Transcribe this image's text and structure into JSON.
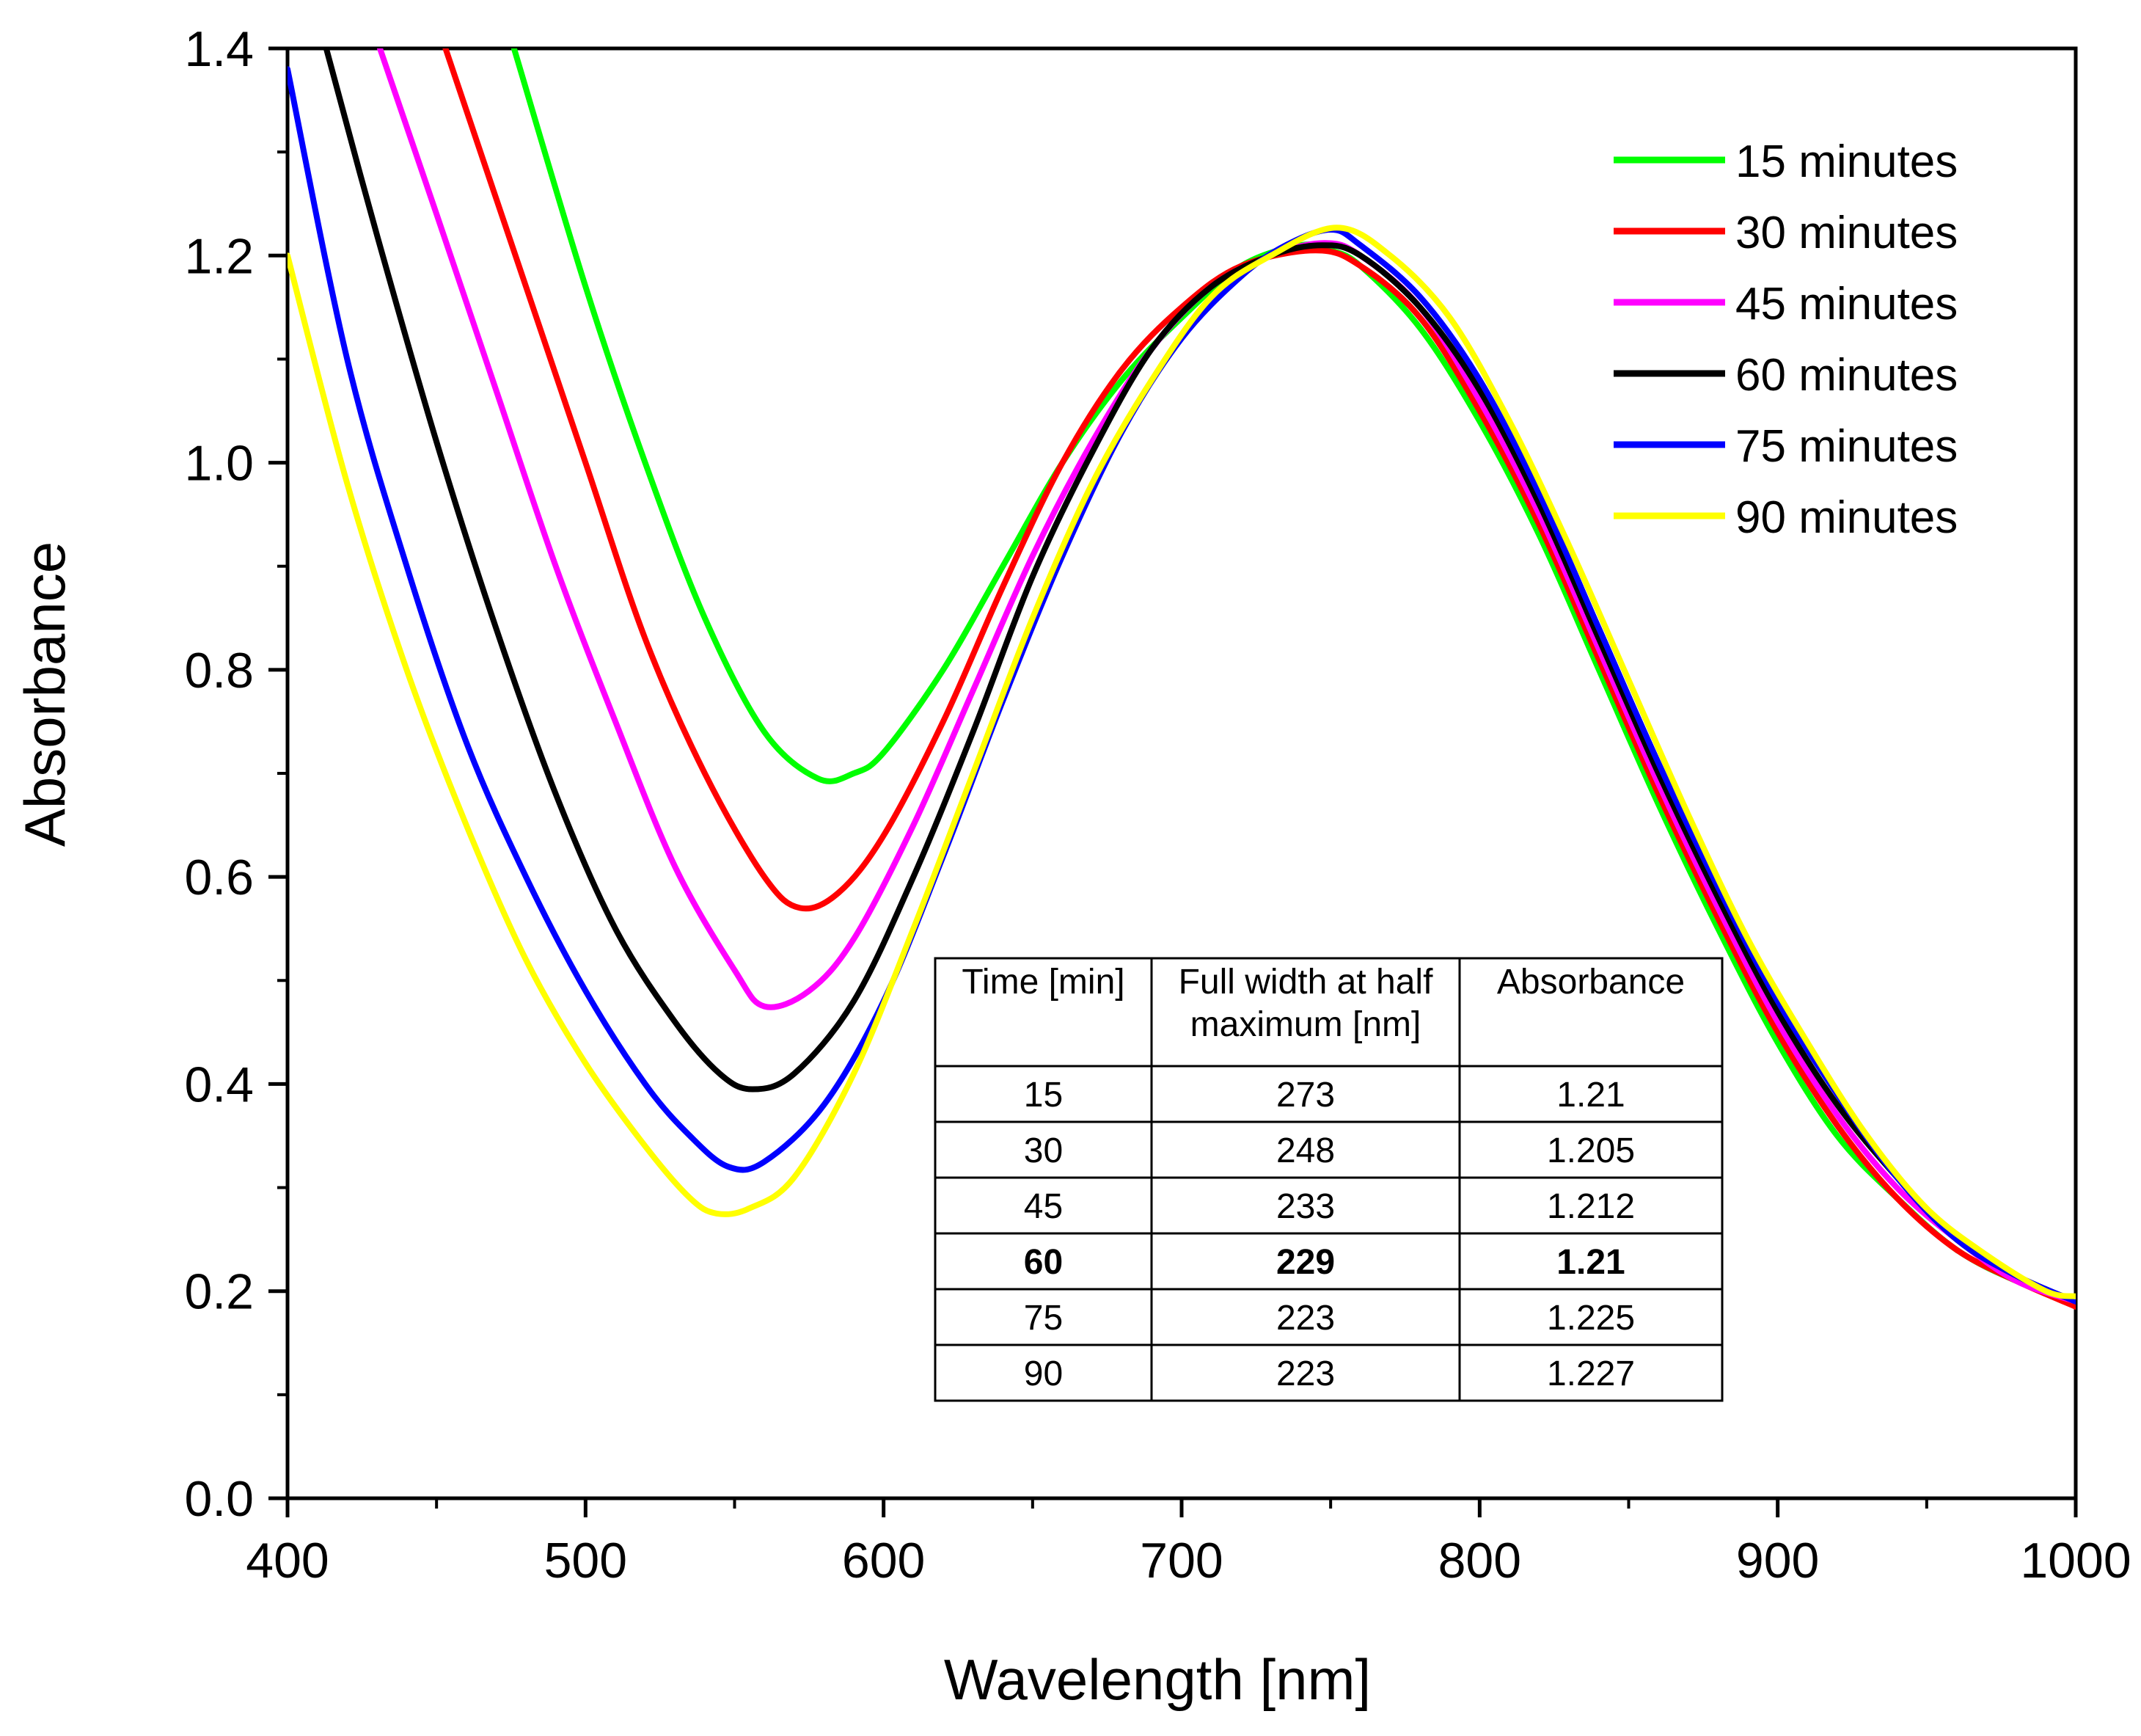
{
  "chart_data": {
    "type": "line",
    "title": "",
    "xlabel": "Wavelength [nm]",
    "ylabel": "Absorbance",
    "xlim": [
      400,
      1000
    ],
    "ylim": [
      0.0,
      1.4
    ],
    "x_ticks": [
      "400",
      "500",
      "600",
      "700",
      "800",
      "900",
      "1000"
    ],
    "y_ticks": [
      "0.0",
      "0.2",
      "0.4",
      "0.6",
      "0.8",
      "1.0",
      "1.2",
      "1.4"
    ],
    "grid": false,
    "legend_position": "top-right",
    "series": [
      {
        "name": "15 minutes",
        "color": "#00ff00",
        "x": [
          476,
          500,
          520,
          540,
          560,
          578,
          590,
          600,
          620,
          640,
          660,
          680,
          700,
          720,
          740,
          750,
          760,
          780,
          800,
          820,
          840,
          860,
          880,
          900,
          920,
          940,
          960,
          980,
          1000
        ],
        "y": [
          1.4,
          1.17,
          1.0,
          0.85,
          0.74,
          0.695,
          0.7,
          0.72,
          0.8,
          0.9,
          1.0,
          1.08,
          1.14,
          1.19,
          1.21,
          1.205,
          1.19,
          1.13,
          1.04,
          0.93,
          0.8,
          0.67,
          0.55,
          0.44,
          0.35,
          0.29,
          0.24,
          0.21,
          0.19
        ]
      },
      {
        "name": "30 minutes",
        "color": "#ff0000",
        "x": [
          453,
          480,
          500,
          520,
          540,
          560,
          572,
          585,
          600,
          620,
          640,
          660,
          680,
          700,
          720,
          745,
          760,
          780,
          800,
          820,
          840,
          860,
          880,
          900,
          920,
          940,
          960,
          980,
          1000
        ],
        "y": [
          1.4,
          1.17,
          1.0,
          0.83,
          0.7,
          0.6,
          0.57,
          0.585,
          0.64,
          0.75,
          0.88,
          1.0,
          1.09,
          1.15,
          1.19,
          1.205,
          1.19,
          1.14,
          1.05,
          0.94,
          0.81,
          0.68,
          0.56,
          0.45,
          0.36,
          0.29,
          0.24,
          0.21,
          0.185
        ]
      },
      {
        "name": "45 minutes",
        "color": "#ff00ff",
        "x": [
          431,
          450,
          470,
          490,
          510,
          530,
          550,
          560,
          575,
          590,
          610,
          630,
          650,
          670,
          690,
          710,
          730,
          748,
          760,
          780,
          800,
          820,
          840,
          860,
          880,
          900,
          920,
          940,
          960,
          980,
          1000
        ],
        "y": [
          1.4,
          1.24,
          1.07,
          0.9,
          0.75,
          0.61,
          0.51,
          0.475,
          0.49,
          0.54,
          0.65,
          0.78,
          0.91,
          1.02,
          1.11,
          1.17,
          1.2,
          1.212,
          1.2,
          1.15,
          1.06,
          0.95,
          0.82,
          0.69,
          0.57,
          0.46,
          0.37,
          0.3,
          0.25,
          0.21,
          0.19
        ]
      },
      {
        "name": "60 minutes",
        "color": "#000000",
        "x": [
          413,
          430,
          450,
          470,
          490,
          510,
          530,
          545,
          556,
          570,
          590,
          610,
          630,
          650,
          670,
          690,
          710,
          730,
          747,
          760,
          780,
          800,
          820,
          840,
          860,
          880,
          900,
          920,
          940,
          960,
          980,
          1000
        ],
        "y": [
          1.4,
          1.22,
          1.02,
          0.84,
          0.68,
          0.55,
          0.46,
          0.41,
          0.395,
          0.41,
          0.48,
          0.6,
          0.74,
          0.89,
          1.01,
          1.11,
          1.17,
          1.2,
          1.21,
          1.2,
          1.15,
          1.07,
          0.96,
          0.83,
          0.7,
          0.58,
          0.47,
          0.38,
          0.31,
          0.25,
          0.215,
          0.19
        ]
      },
      {
        "name": "75 minutes",
        "color": "#0000ff",
        "x": [
          400,
          420,
          440,
          460,
          480,
          500,
          520,
          535,
          548,
          560,
          580,
          600,
          620,
          640,
          660,
          680,
          700,
          720,
          735,
          750,
          760,
          780,
          800,
          820,
          840,
          860,
          880,
          900,
          920,
          940,
          960,
          980,
          1000
        ],
        "y": [
          1.38,
          1.1,
          0.9,
          0.73,
          0.6,
          0.49,
          0.4,
          0.35,
          0.32,
          0.325,
          0.38,
          0.48,
          0.62,
          0.77,
          0.91,
          1.03,
          1.12,
          1.18,
          1.21,
          1.225,
          1.21,
          1.16,
          1.08,
          0.97,
          0.84,
          0.71,
          0.59,
          0.48,
          0.39,
          0.31,
          0.25,
          0.215,
          0.19
        ]
      },
      {
        "name": "90 minutes",
        "color": "#ffff00",
        "x": [
          400,
          420,
          440,
          460,
          480,
          500,
          520,
          535,
          544,
          555,
          570,
          590,
          610,
          630,
          650,
          670,
          690,
          710,
          730,
          752,
          770,
          790,
          810,
          830,
          850,
          870,
          890,
          910,
          930,
          950,
          970,
          990,
          1000
        ],
        "y": [
          1.2,
          0.98,
          0.8,
          0.65,
          0.52,
          0.42,
          0.34,
          0.29,
          0.275,
          0.28,
          0.31,
          0.41,
          0.55,
          0.7,
          0.85,
          0.98,
          1.08,
          1.16,
          1.2,
          1.227,
          1.2,
          1.14,
          1.04,
          0.92,
          0.79,
          0.66,
          0.54,
          0.44,
          0.35,
          0.28,
          0.235,
          0.2,
          0.195
        ]
      }
    ],
    "table": {
      "headers": [
        "Time [min]",
        "Full width at half maximum  [nm]",
        "Absorbance"
      ],
      "header_lines": [
        [
          "Time [min]"
        ],
        [
          "Full width at half",
          "maximum  [nm]"
        ],
        [
          "Absorbance"
        ]
      ],
      "rows": [
        {
          "cells": [
            "15",
            "273",
            "1.21"
          ],
          "bold": false
        },
        {
          "cells": [
            "30",
            "248",
            "1.205"
          ],
          "bold": false
        },
        {
          "cells": [
            "45",
            "233",
            "1.212"
          ],
          "bold": false
        },
        {
          "cells": [
            "60",
            "229",
            "1.21"
          ],
          "bold": true
        },
        {
          "cells": [
            "75",
            "223",
            "1.225"
          ],
          "bold": false
        },
        {
          "cells": [
            "90",
            "223",
            "1.227"
          ],
          "bold": false
        }
      ]
    }
  }
}
